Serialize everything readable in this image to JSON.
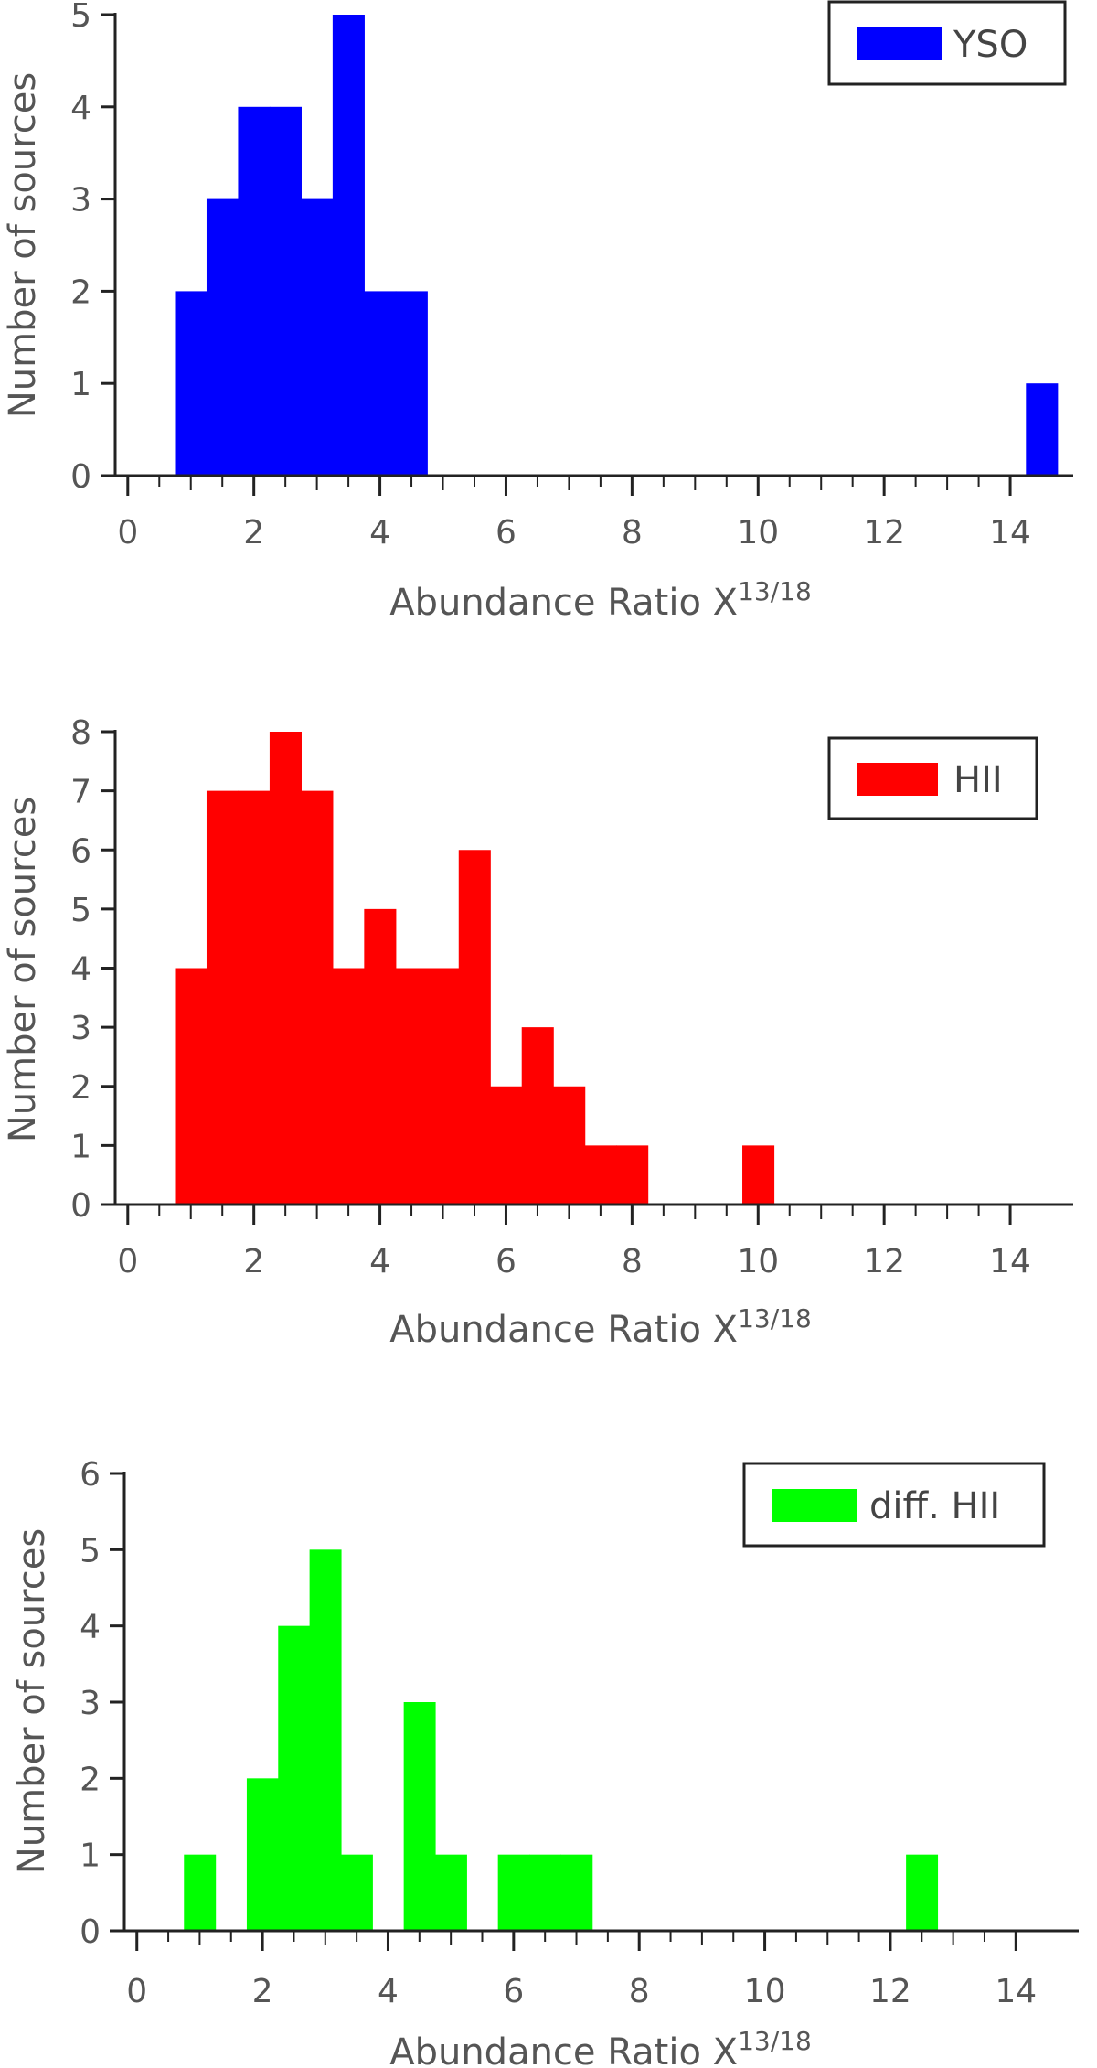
{
  "chart_data": [
    {
      "type": "bar",
      "title": "",
      "xlabel": "Abundance Ratio X",
      "xlabel_superscript": "13/18",
      "ylabel": "Number of sources",
      "xlim": [
        -0.2,
        15.0
      ],
      "ylim": [
        0,
        5
      ],
      "xticks": [
        "0",
        "2",
        "4",
        "6",
        "8",
        "10",
        "12",
        "14"
      ],
      "yticks": [
        "0",
        "1",
        "2",
        "3",
        "4",
        "5"
      ],
      "bin_width": 0.5,
      "bins_start": [
        0.75,
        1.25,
        1.75,
        2.25,
        2.75,
        3.25,
        3.75,
        4.25,
        14.25
      ],
      "values": [
        2,
        3,
        4,
        4,
        3,
        5,
        2,
        2,
        1
      ],
      "legend": {
        "label": "YSO",
        "position": "top-right"
      },
      "color": "#0000FF"
    },
    {
      "type": "bar",
      "title": "",
      "xlabel": "Abundance Ratio X",
      "xlabel_superscript": "13/18",
      "ylabel": "Number of sources",
      "xlim": [
        -0.2,
        15.0
      ],
      "ylim": [
        0,
        8
      ],
      "xticks": [
        "0",
        "2",
        "4",
        "6",
        "8",
        "10",
        "12",
        "14"
      ],
      "yticks": [
        "0",
        "1",
        "2",
        "3",
        "4",
        "5",
        "6",
        "7",
        "8"
      ],
      "bin_width": 0.5,
      "bins_start": [
        0.75,
        1.25,
        1.75,
        2.25,
        2.75,
        3.25,
        3.75,
        4.25,
        4.75,
        5.25,
        5.75,
        6.25,
        6.75,
        7.25,
        7.75,
        9.75
      ],
      "values": [
        4,
        7,
        7,
        8,
        7,
        4,
        5,
        4,
        4,
        6,
        2,
        3,
        2,
        1,
        1,
        1
      ],
      "legend": {
        "label": "HII",
        "position": "top-right"
      },
      "color": "#FF0000"
    },
    {
      "type": "bar",
      "title": "",
      "xlabel": "Abundance Ratio X",
      "xlabel_superscript": "13/18",
      "ylabel": "Number of sources",
      "xlim": [
        -0.2,
        15.0
      ],
      "ylim": [
        0,
        6
      ],
      "xticks": [
        "0",
        "2",
        "4",
        "6",
        "8",
        "10",
        "12",
        "14"
      ],
      "yticks": [
        "0",
        "1",
        "2",
        "3",
        "4",
        "5",
        "6"
      ],
      "bin_width": 0.5,
      "bins_start": [
        0.75,
        1.75,
        2.25,
        2.75,
        3.25,
        4.25,
        4.75,
        5.75,
        6.25,
        6.75,
        12.25
      ],
      "values": [
        1,
        2,
        4,
        5,
        1,
        3,
        1,
        1,
        1,
        1,
        1
      ],
      "legend": {
        "label": "diff. HII",
        "position": "top-right"
      },
      "color": "#00FF00"
    }
  ]
}
